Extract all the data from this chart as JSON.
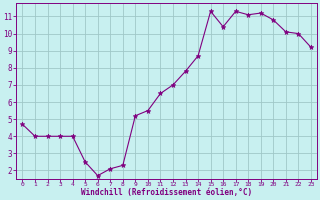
{
  "x": [
    0,
    1,
    2,
    3,
    4,
    5,
    6,
    7,
    8,
    9,
    10,
    11,
    12,
    13,
    14,
    15,
    16,
    17,
    18,
    19,
    20,
    21,
    22,
    23
  ],
  "y": [
    4.7,
    4.0,
    4.0,
    4.0,
    4.0,
    2.5,
    1.7,
    2.1,
    2.3,
    5.2,
    5.5,
    6.5,
    7.0,
    7.8,
    8.7,
    11.3,
    10.4,
    11.3,
    11.1,
    11.2,
    10.8,
    10.1,
    10.0,
    9.2
  ],
  "line_color": "#800080",
  "marker_color": "#800080",
  "bg_color": "#c8f0f0",
  "grid_color": "#a0c8c8",
  "xlabel": "Windchill (Refroidissement éolien,°C)",
  "xlabel_color": "#800080",
  "tick_color": "#800080",
  "ylim": [
    1.5,
    11.8
  ],
  "xlim": [
    -0.5,
    23.5
  ],
  "yticks": [
    2,
    3,
    4,
    5,
    6,
    7,
    8,
    9,
    10,
    11
  ],
  "xticks": [
    0,
    1,
    2,
    3,
    4,
    5,
    6,
    7,
    8,
    9,
    10,
    11,
    12,
    13,
    14,
    15,
    16,
    17,
    18,
    19,
    20,
    21,
    22,
    23
  ]
}
